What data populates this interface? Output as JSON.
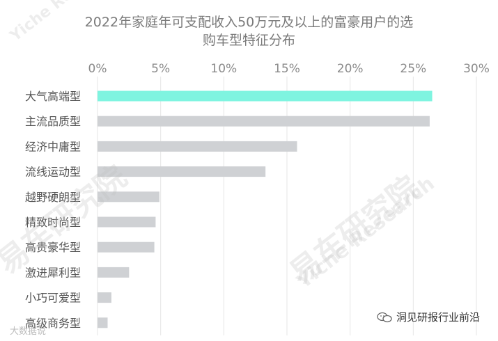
{
  "chart_data": {
    "type": "bar",
    "orientation": "horizontal",
    "title_line1": "2022年家庭年可支配收入50万元及以上的富豪用户的选",
    "title_line2": "购车型特征分布",
    "xlabel": "",
    "ylabel": "",
    "xlim": [
      0,
      30
    ],
    "x_ticks": [
      "0%",
      "5%",
      "10%",
      "15%",
      "20%",
      "25%",
      "30%"
    ],
    "x_tick_values": [
      0,
      5,
      10,
      15,
      20,
      25,
      30
    ],
    "x_axis_position": "top",
    "grid": true,
    "categories": [
      "大气高端型",
      "主流品质型",
      "经济中庸型",
      "流线运动型",
      "越野硬朗型",
      "精致时尚型",
      "高贵豪华型",
      "激进犀利型",
      "小巧可爱型",
      "高级商务型"
    ],
    "values": [
      26.5,
      26.3,
      15.8,
      13.3,
      4.9,
      4.6,
      4.5,
      2.5,
      1.1,
      0.8
    ],
    "highlight_index": 0,
    "colors": {
      "highlight": "#7ff4e0",
      "bar": "#cfd1d4",
      "grid": "#e6e6e6",
      "tick": "#8a8a8a",
      "category": "#555555"
    }
  },
  "watermark": {
    "cn": "易车研究院",
    "en": "Yiche Research"
  },
  "footer": {
    "brand": "洞见研报行业前沿",
    "corner": "大数据说"
  }
}
